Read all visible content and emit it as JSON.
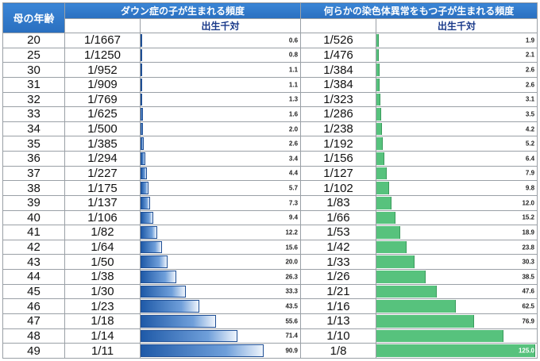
{
  "header": {
    "age_label": "母の年齢",
    "down_title": "ダウン症の子が生まれる頻度",
    "chrom_title": "何らかの染色体異常をもつ子が生まれる頻度",
    "unit_label": "出生千対"
  },
  "colors": {
    "header_blue": "#2f7acb",
    "down_bar": "#3d78c6",
    "chrom_bar": "#57c27d"
  },
  "chart_data": [
    {
      "type": "bar",
      "title": "ダウン症の子が生まれる頻度",
      "unit": "出生千対",
      "categories": [
        "20",
        "25",
        "30",
        "31",
        "32",
        "33",
        "34",
        "35",
        "36",
        "37",
        "38",
        "39",
        "40",
        "41",
        "42",
        "43",
        "44",
        "45",
        "46",
        "47",
        "48",
        "49"
      ],
      "frequencies": [
        "1/1667",
        "1/1250",
        "1/952",
        "1/909",
        "1/769",
        "1/625",
        "1/500",
        "1/385",
        "1/294",
        "1/227",
        "1/175",
        "1/137",
        "1/106",
        "1/82",
        "1/64",
        "1/50",
        "1/38",
        "1/30",
        "1/23",
        "1/18",
        "1/14",
        "1/11"
      ],
      "values": [
        0.6,
        0.8,
        1.1,
        1.1,
        1.3,
        1.6,
        2.0,
        2.6,
        3.4,
        4.4,
        5.7,
        7.3,
        9.4,
        12.2,
        15.6,
        20.0,
        26.3,
        33.3,
        43.5,
        55.6,
        71.4,
        90.9
      ],
      "value_labels": [
        "0.6",
        "0.8",
        "1.1",
        "1.1",
        "1.3",
        "1.6",
        "2.0",
        "2.6",
        "3.4",
        "4.4",
        "5.7",
        "7.3",
        "9.4",
        "12.2",
        "15.6",
        "20.0",
        "26.3",
        "33.3",
        "43.5",
        "55.6",
        "71.4",
        "90.9"
      ],
      "xlim": [
        0,
        125
      ]
    },
    {
      "type": "bar",
      "title": "何らかの染色体異常をもつ子が生まれる頻度",
      "unit": "出生千対",
      "categories": [
        "20",
        "25",
        "30",
        "31",
        "32",
        "33",
        "34",
        "35",
        "36",
        "37",
        "38",
        "39",
        "40",
        "41",
        "42",
        "43",
        "44",
        "45",
        "46",
        "47",
        "48",
        "49"
      ],
      "frequencies": [
        "1/526",
        "1/476",
        "1/384",
        "1/384",
        "1/323",
        "1/286",
        "1/238",
        "1/192",
        "1/156",
        "1/127",
        "1/102",
        "1/83",
        "1/66",
        "1/53",
        "1/42",
        "1/33",
        "1/26",
        "1/21",
        "1/16",
        "1/13",
        "1/10",
        "1/8"
      ],
      "values": [
        1.9,
        2.1,
        2.6,
        2.6,
        3.1,
        3.5,
        4.2,
        5.2,
        6.4,
        7.9,
        9.8,
        12.0,
        15.2,
        18.9,
        23.8,
        30.3,
        38.5,
        47.6,
        62.5,
        76.9,
        100.0,
        125.0
      ],
      "value_labels": [
        "1.9",
        "2.1",
        "2.6",
        "2.6",
        "3.1",
        "3.5",
        "4.2",
        "5.2",
        "6.4",
        "7.9",
        "9.8",
        "12.0",
        "15.2",
        "18.9",
        "23.8",
        "30.3",
        "38.5",
        "47.6",
        "62.5",
        "76.9",
        "100.0",
        "125.0"
      ],
      "xlim": [
        0,
        125
      ]
    }
  ]
}
